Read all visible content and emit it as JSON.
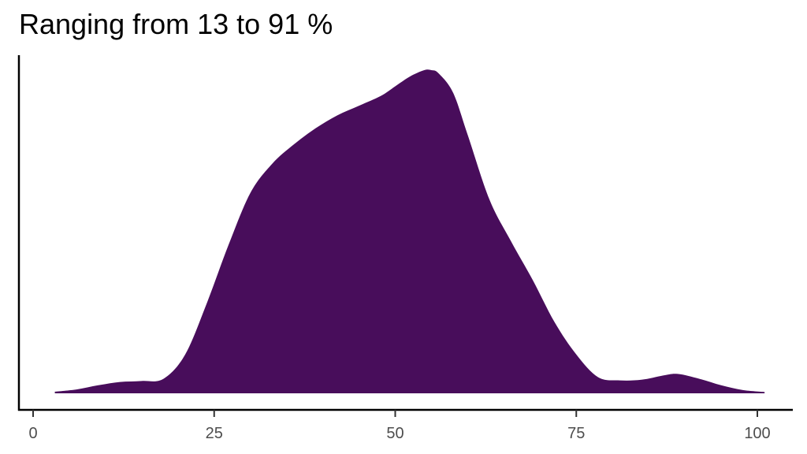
{
  "chart_data": {
    "type": "area",
    "title": "Ranging from 13 to 91 %",
    "xlabel": "",
    "ylabel": "",
    "xlim": [
      -1,
      104
    ],
    "ylim": [
      0,
      1
    ],
    "grid": false,
    "x_ticks": [
      0,
      25,
      50,
      75,
      100
    ],
    "x_tick_labels": [
      "0",
      "25",
      "50",
      "75",
      "100"
    ],
    "fill_color": "#480d5b",
    "series": [
      {
        "x": [
          3,
          6,
          9,
          12,
          15,
          18,
          21,
          24,
          27,
          30,
          33,
          36,
          39,
          42,
          45,
          48,
          50,
          52,
          54,
          55,
          56,
          58,
          60,
          63,
          66,
          69,
          72,
          75,
          78,
          81,
          84,
          87,
          89,
          92,
          95,
          98,
          101
        ],
        "values": [
          0.005,
          0.012,
          0.025,
          0.035,
          0.038,
          0.045,
          0.12,
          0.28,
          0.46,
          0.62,
          0.71,
          0.77,
          0.82,
          0.86,
          0.89,
          0.92,
          0.95,
          0.98,
          1.0,
          1.0,
          0.99,
          0.93,
          0.8,
          0.6,
          0.47,
          0.35,
          0.22,
          0.12,
          0.05,
          0.04,
          0.042,
          0.055,
          0.06,
          0.045,
          0.025,
          0.01,
          0.004
        ]
      }
    ]
  }
}
